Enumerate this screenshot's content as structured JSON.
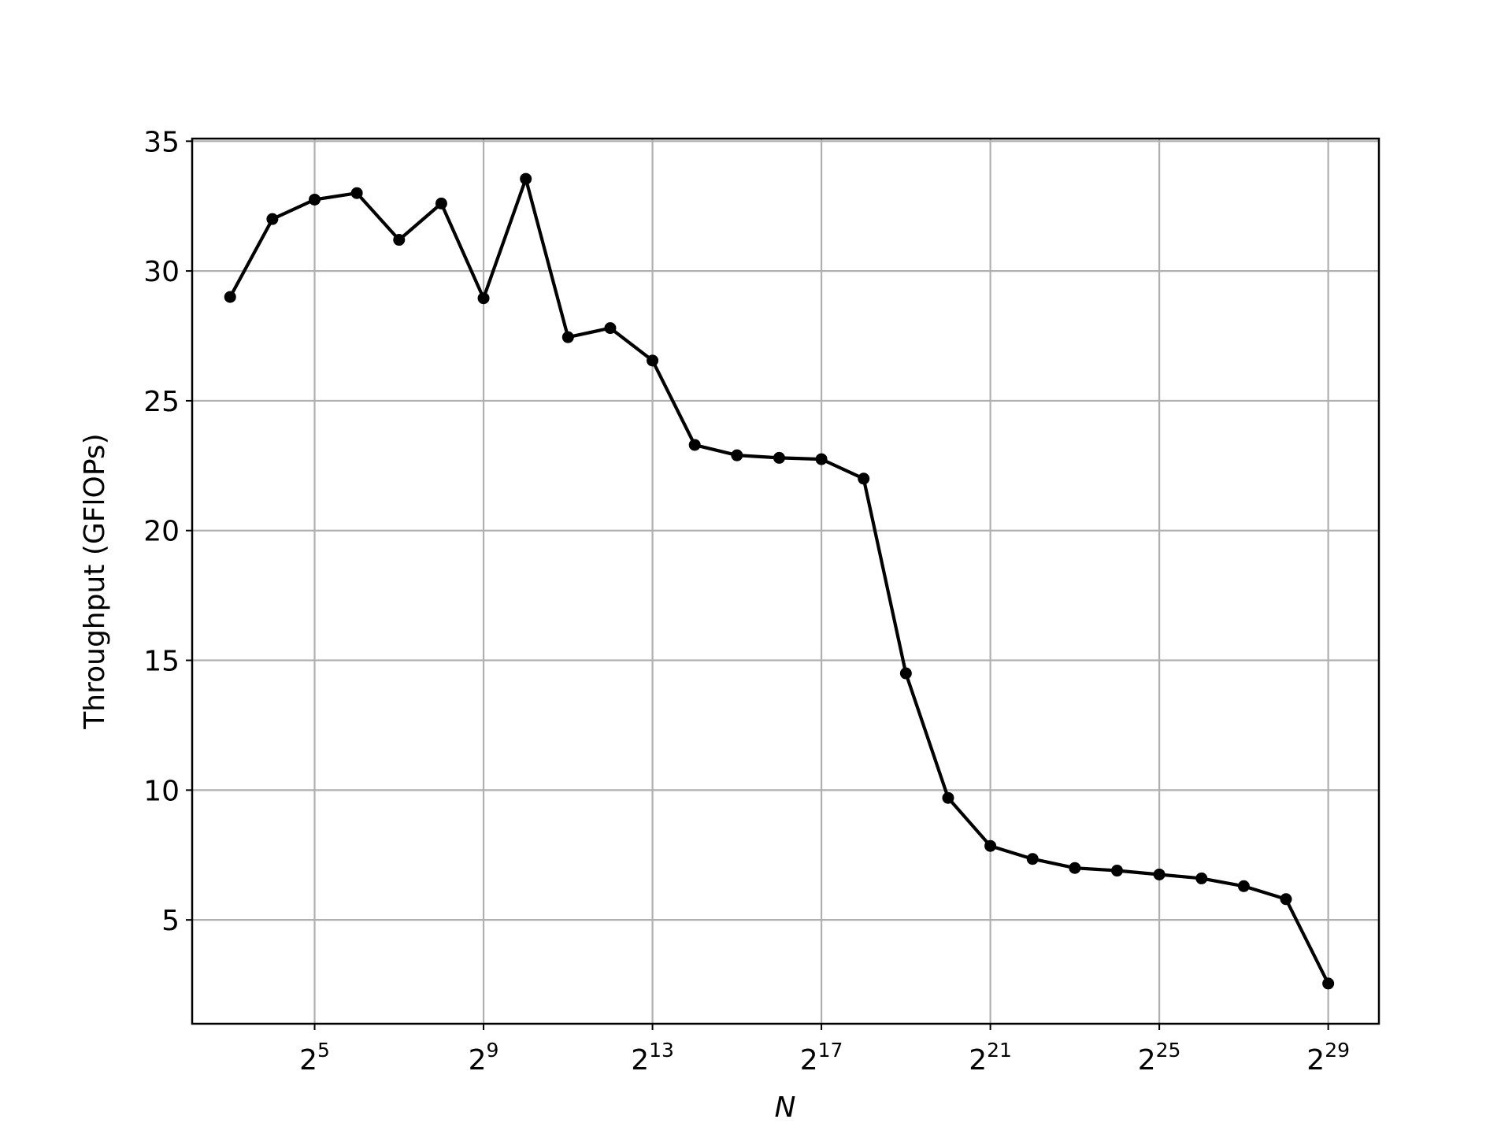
{
  "chart_data": {
    "type": "line",
    "title": "",
    "xlabel": "N",
    "ylabel": "Throughput (GFlOPs)",
    "x_scale": "log2",
    "xlim": [
      2.1,
      30.2
    ],
    "ylim": [
      1.0,
      35.1
    ],
    "grid": true,
    "x_ticks": [
      {
        "value": 5,
        "base": "2",
        "exp": "5"
      },
      {
        "value": 9,
        "base": "2",
        "exp": "9"
      },
      {
        "value": 13,
        "base": "2",
        "exp": "13"
      },
      {
        "value": 17,
        "base": "2",
        "exp": "17"
      },
      {
        "value": 21,
        "base": "2",
        "exp": "21"
      },
      {
        "value": 25,
        "base": "2",
        "exp": "25"
      },
      {
        "value": 29,
        "base": "2",
        "exp": "29"
      }
    ],
    "y_ticks": [
      5,
      10,
      15,
      20,
      25,
      30,
      35
    ],
    "series": [
      {
        "color": "#000000",
        "marker": "circle",
        "x_log2": [
          3,
          4,
          5,
          6,
          7,
          8,
          9,
          10,
          11,
          12,
          13,
          14,
          15,
          16,
          17,
          18,
          19,
          20,
          21,
          22,
          23,
          24,
          25,
          26,
          27,
          28,
          29
        ],
        "values": [
          29.0,
          32.0,
          32.75,
          33.0,
          31.2,
          32.6,
          28.95,
          33.55,
          27.45,
          27.8,
          26.55,
          23.3,
          22.9,
          22.8,
          22.75,
          22.0,
          14.5,
          9.7,
          7.85,
          7.35,
          7.0,
          6.9,
          6.75,
          6.6,
          6.3,
          5.8,
          2.55
        ]
      }
    ]
  }
}
